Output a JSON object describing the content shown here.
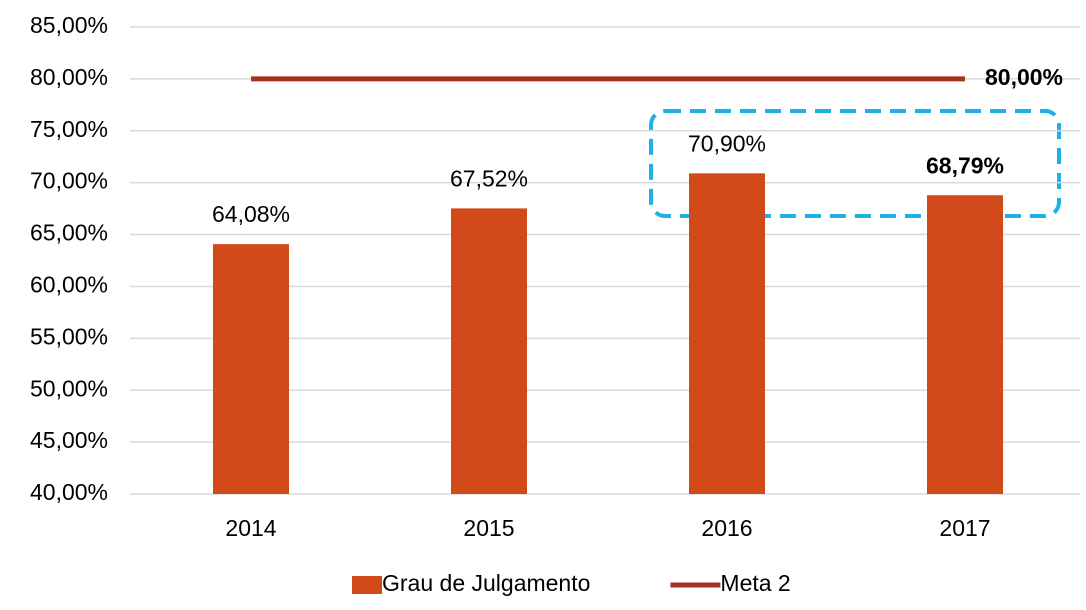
{
  "chart_data": {
    "type": "bar_line",
    "categories": [
      "2014",
      "2015",
      "2016",
      "2017"
    ],
    "series": [
      {
        "name": "Grau de Julgamento",
        "color": "#d2491a",
        "type": "bar",
        "values": [
          64.08,
          67.52,
          70.9,
          68.79
        ],
        "value_labels": [
          "64,08%",
          "67,52%",
          "70,90%",
          "68,79%"
        ]
      },
      {
        "name": "Meta 2",
        "color": "#a5311f",
        "type": "line",
        "values": [
          80,
          80,
          80,
          80
        ],
        "value_labels": [
          null,
          null,
          null,
          "80,00%"
        ]
      }
    ],
    "ylim": [
      40,
      85
    ],
    "yticks": [
      {
        "value": 40,
        "label": "40,00%"
      },
      {
        "value": 45,
        "label": "45,00%"
      },
      {
        "value": 50,
        "label": "50,00%"
      },
      {
        "value": 55,
        "label": "55,00%"
      },
      {
        "value": 60,
        "label": "60,00%"
      },
      {
        "value": 65,
        "label": "65,00%"
      },
      {
        "value": 70,
        "label": "70,00%"
      },
      {
        "value": 75,
        "label": "75,00%"
      },
      {
        "value": 80,
        "label": "80,00%"
      },
      {
        "value": 85,
        "label": "85,00%"
      }
    ],
    "grid": true,
    "legend": "bottom"
  }
}
